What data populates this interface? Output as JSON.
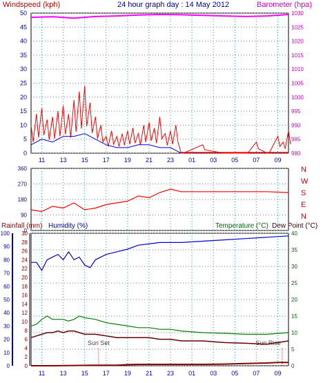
{
  "chart_data": [
    {
      "type": "line",
      "panel": "wind-barometer",
      "title": "24 hour graph day : 14 May 2012",
      "left_axis_label": "Windspeed (kph)",
      "right_axis_label": "Barometer (hpa)",
      "x_ticks": [
        "11",
        "13",
        "15",
        "17",
        "19",
        "21",
        "23",
        "01",
        "03",
        "05",
        "07",
        "09"
      ],
      "left_ticks": [
        "0",
        "5",
        "10",
        "15",
        "20",
        "25",
        "30",
        "35",
        "40",
        "45",
        "50"
      ],
      "right_ticks": [
        "980",
        "985",
        "990",
        "995",
        "1000",
        "1005",
        "1010",
        "1015",
        "1020",
        "1025",
        "1030"
      ],
      "right_ticks_low": "960",
      "ylim_left": [
        0,
        50
      ],
      "ylim_right": [
        980,
        1030
      ],
      "grid": true,
      "colors": {
        "wind": "#ff0000",
        "gust": "#ff0000",
        "avg_wind": "#0000dd",
        "calm": "#008000",
        "barometer": "#ff00ff",
        "title": "#0000aa",
        "left_label": "#cc0000",
        "right_label": "#cc00cc"
      },
      "series": [
        {
          "name": "Barometer",
          "x": [
            10,
            12,
            14,
            16,
            18,
            20,
            22,
            24,
            26,
            28,
            30,
            32,
            34
          ],
          "values": [
            1028.5,
            1028.7,
            1028.2,
            1028.8,
            1029.0,
            1029.3,
            1029.5,
            1029.4,
            1029.2,
            1029.0,
            1028.8,
            1029.0,
            1029.5
          ]
        },
        {
          "name": "Wind gust",
          "x": [
            10,
            10.5,
            11,
            11.5,
            12,
            12.5,
            13,
            13.5,
            14,
            14.5,
            15,
            15.5,
            16,
            16.5,
            17,
            17.5,
            18,
            18.5,
            19,
            19.5,
            20,
            20.5,
            21,
            21.5,
            22,
            22.5,
            23,
            23.5,
            24,
            26,
            28,
            30,
            31,
            32,
            33,
            33.5,
            34
          ],
          "values": [
            10,
            14,
            16,
            12,
            13,
            15,
            17,
            14,
            19,
            22,
            24,
            18,
            13,
            10,
            6,
            8,
            6,
            7,
            8,
            9,
            7,
            10,
            11,
            9,
            13,
            7,
            8,
            10,
            0,
            3,
            0,
            0,
            4,
            0,
            6,
            4,
            8
          ]
        },
        {
          "name": "Average wind",
          "x": [
            10,
            11,
            12,
            13,
            14,
            15,
            16,
            17,
            18,
            19,
            20,
            21,
            22,
            23,
            24
          ],
          "values": [
            3,
            5,
            4,
            6,
            6,
            7,
            5,
            3,
            2,
            2,
            3,
            3,
            2,
            2,
            0
          ]
        }
      ]
    },
    {
      "type": "line",
      "panel": "wind-direction",
      "left_ticks": [
        "0",
        "90",
        "180",
        "270",
        "360"
      ],
      "direction_labels": [
        "N",
        "W",
        "S",
        "E",
        "N"
      ],
      "ylim": [
        0,
        360
      ],
      "colors": {
        "direction": "#ff0000"
      },
      "series": [
        {
          "name": "Wind direction",
          "x": [
            10,
            11,
            12,
            13,
            14,
            15,
            16,
            17,
            18,
            19,
            20,
            21,
            22,
            23,
            24,
            26,
            28,
            30,
            32,
            34
          ],
          "values": [
            120,
            110,
            140,
            130,
            160,
            120,
            130,
            150,
            160,
            170,
            200,
            190,
            220,
            240,
            225,
            225,
            225,
            225,
            225,
            220
          ]
        }
      ]
    },
    {
      "type": "line",
      "panel": "rain-humidity-temp",
      "labels": {
        "rainfall": "Rainfall (mm)",
        "humidity": "Humidity (%)",
        "temperature": "Temperature (°C)",
        "dewpoint": "Dew Point (°C)"
      },
      "rain_ticks": [
        "0",
        "2",
        "4",
        "6",
        "8",
        "10"
      ],
      "humidity_ticks": [
        "0",
        "10",
        "20",
        "30",
        "40",
        "50",
        "60",
        "70",
        "80",
        "90",
        "100"
      ],
      "temp_left_ticks": [
        "0",
        "2",
        "4",
        "6",
        "8",
        "10",
        "12",
        "14",
        "16",
        "18",
        "20",
        "22",
        "24",
        "26",
        "28",
        "30"
      ],
      "temp_right_ticks": [
        "0",
        "5",
        "10",
        "15",
        "20",
        "25",
        "30",
        "35",
        "40"
      ],
      "annotations": [
        "Sun Set",
        "Sun Rise"
      ],
      "colors": {
        "humidity": "#0000cc",
        "temperature": "#008000",
        "dewpoint": "#660000",
        "rain": "#880000",
        "temp_label": "#006600",
        "rain_label": "#880000"
      },
      "series": [
        {
          "name": "Humidity",
          "x": [
            10,
            10.5,
            11,
            11.5,
            12,
            12.5,
            13,
            13.5,
            14,
            14.5,
            15,
            15.5,
            16,
            16.5,
            17,
            18,
            19,
            20,
            21,
            22,
            23,
            24,
            26,
            28,
            30,
            32,
            34
          ],
          "values": [
            78,
            78,
            72,
            80,
            82,
            84,
            80,
            86,
            80,
            82,
            76,
            74,
            80,
            82,
            84,
            86,
            88,
            91,
            92,
            93,
            93,
            93,
            94,
            95,
            96,
            97,
            98
          ]
        },
        {
          "name": "Temperature",
          "x": [
            10,
            10.5,
            11,
            11.5,
            12,
            12.5,
            13,
            13.5,
            14,
            14.5,
            15,
            16,
            17,
            18,
            19,
            20,
            21,
            22,
            23,
            24,
            26,
            28,
            30,
            32,
            34
          ],
          "values": [
            12,
            12.5,
            14,
            15,
            14,
            14,
            14,
            13.5,
            14,
            15,
            14.5,
            14,
            13,
            12.5,
            12,
            11.5,
            11.5,
            11,
            11,
            10.5,
            10,
            9.8,
            9.5,
            9.5,
            10
          ]
        },
        {
          "name": "Dew Point",
          "x": [
            10,
            10.5,
            11,
            11.5,
            12,
            12.5,
            13,
            13.5,
            14,
            14.5,
            15,
            16,
            17,
            18,
            19,
            20,
            21,
            22,
            23,
            24,
            26,
            28,
            30,
            32,
            34
          ],
          "values": [
            8.5,
            9,
            9.5,
            10,
            10,
            10.5,
            10,
            10.5,
            10.5,
            10,
            9.5,
            9.5,
            9,
            8.5,
            8.5,
            8.5,
            8.5,
            8,
            8,
            7.5,
            7.5,
            7,
            6.8,
            6.5,
            7.5
          ]
        },
        {
          "name": "Rainfall",
          "x": [
            10,
            12,
            14,
            16,
            18,
            19,
            20,
            22,
            24,
            26,
            28,
            30,
            32,
            33,
            34
          ],
          "values": [
            0,
            0,
            0.1,
            0.2,
            0.2,
            0.4,
            0.5,
            0.5,
            0.5,
            0.5,
            0.6,
            0.8,
            1.0,
            1.2,
            1.2
          ]
        }
      ]
    }
  ]
}
